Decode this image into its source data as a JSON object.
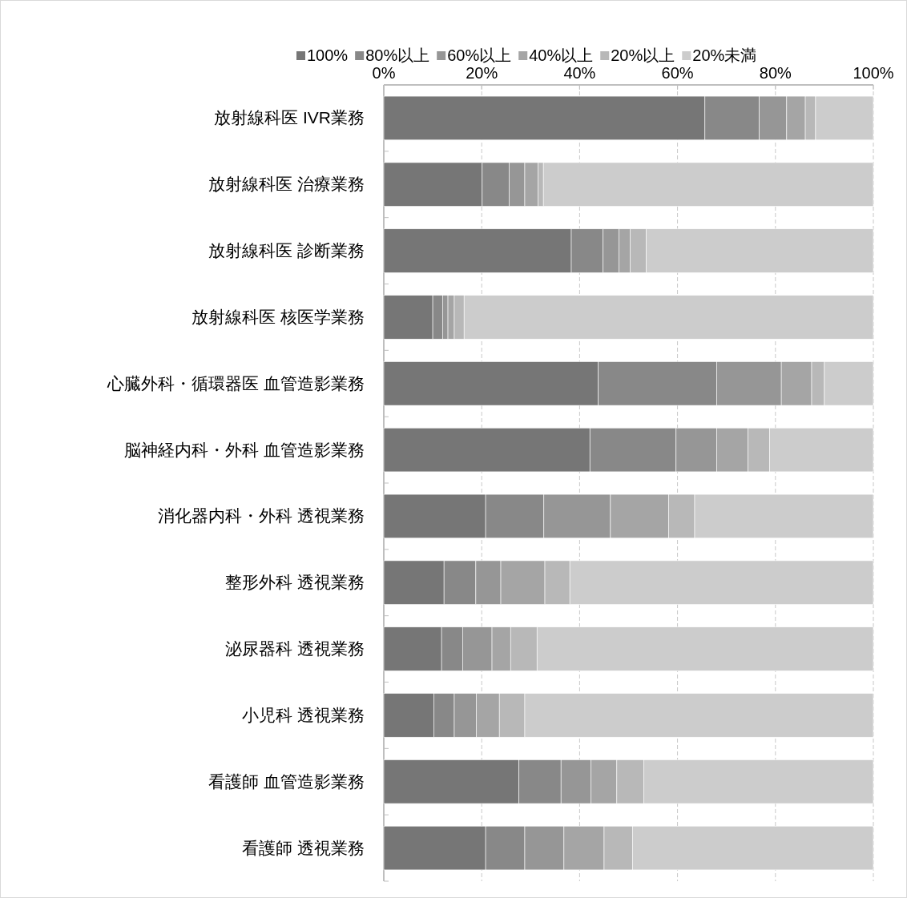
{
  "chart_data": {
    "type": "bar",
    "orientation": "horizontal",
    "stacked": true,
    "categories": [
      "放射線科医 IVR業務",
      "放射線科医 治療業務",
      "放射線科医 診断業務",
      "放射線科医 核医学業務",
      "心臓外科・循環器医 血管造影業務",
      "脳神経内科・外科 血管造影業務",
      "消化器内科・外科 透視業務",
      "整形外科 透視業務",
      "泌尿器科 透視業務",
      "小児科 透視業務",
      "看護師 血管造影業務",
      "看護師 透視業務"
    ],
    "series": [
      {
        "name": "100%",
        "color": "#767676",
        "values": [
          65.6,
          20.1,
          38.3,
          10.0,
          43.8,
          42.1,
          20.8,
          12.3,
          11.8,
          10.2,
          27.6,
          20.8
        ]
      },
      {
        "name": "80%以上",
        "color": "#888888",
        "values": [
          11.1,
          5.5,
          6.5,
          2.0,
          24.2,
          17.6,
          11.9,
          6.5,
          4.3,
          4.2,
          8.6,
          8.0
        ]
      },
      {
        "name": "60%以上",
        "color": "#969696",
        "values": [
          5.6,
          3.2,
          3.2,
          1.1,
          13.2,
          8.3,
          13.6,
          5.1,
          6.0,
          4.5,
          6.1,
          8.0
        ]
      },
      {
        "name": "40%以上",
        "color": "#a5a5a5",
        "values": [
          3.8,
          2.7,
          2.3,
          1.3,
          6.2,
          6.4,
          11.9,
          9.0,
          3.8,
          4.7,
          5.3,
          8.2
        ]
      },
      {
        "name": "20%以上",
        "color": "#b8b8b8",
        "values": [
          2.1,
          1.1,
          3.3,
          2.0,
          2.6,
          4.4,
          5.3,
          5.1,
          5.4,
          5.2,
          5.5,
          5.8
        ]
      },
      {
        "name": "20%未満",
        "color": "#cccccc",
        "values": [
          11.8,
          67.4,
          46.4,
          83.6,
          10.0,
          21.2,
          36.5,
          62.0,
          68.7,
          71.2,
          46.9,
          49.2
        ]
      }
    ],
    "xlim": [
      0,
      100
    ],
    "xticks": [
      {
        "value": 0,
        "label": "0%"
      },
      {
        "value": 20,
        "label": "20%"
      },
      {
        "value": 40,
        "label": "40%"
      },
      {
        "value": 60,
        "label": "60%"
      },
      {
        "value": 80,
        "label": "80%"
      },
      {
        "value": 100,
        "label": "100%"
      }
    ],
    "grid": "x",
    "legend": "top"
  }
}
